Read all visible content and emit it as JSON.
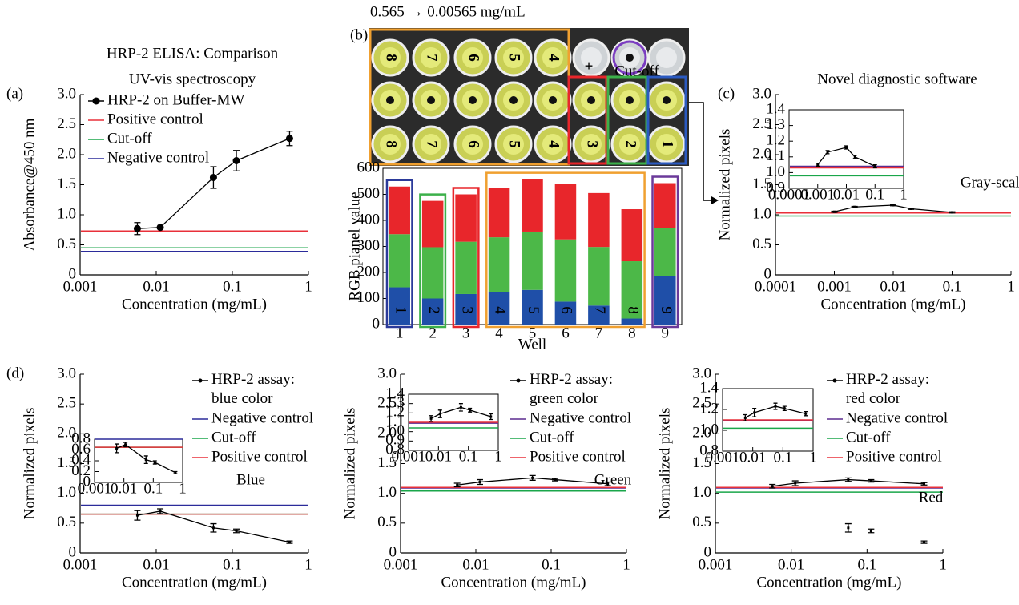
{
  "photo": {
    "caption": "0.565 → 0.00565 mg/mL",
    "top_labels": [
      "8",
      "7",
      "6",
      "5",
      "4"
    ],
    "bottom_labels": [
      "8",
      "7",
      "6",
      "5",
      "4",
      "3",
      "2",
      "1"
    ],
    "plus": "+",
    "cutoff": "Cut-off"
  },
  "chart_data": [
    {
      "type": "line",
      "panel_label": "(a)",
      "title": "HRP-2 ELISA: Comparison",
      "title_color": "#e8303a",
      "subtitle": "UV-vis spectroscopy",
      "xlabel": "Concentration (mg/mL)",
      "ylabel": "Absorbance@450 nm",
      "log_x": true,
      "xlim": [
        0.001,
        1
      ],
      "xticks": [
        0.001,
        0.01,
        0.1,
        1
      ],
      "ylim": [
        0,
        3
      ],
      "yticks": [
        0,
        0.5,
        {
          "value": 1,
          "label": "1.0"
        },
        1.5,
        {
          "value": 2,
          "label": "2.0"
        },
        2.5,
        {
          "value": 3,
          "label": "3.0"
        }
      ],
      "marker": "circle",
      "legend": "upper left",
      "series": [
        {
          "name": "HRP-2 on Buffer-MW",
          "color": "#000000",
          "x": [
            0.00565,
            0.0113,
            0.0565,
            0.113,
            0.565
          ],
          "values": [
            0.77,
            0.79,
            1.62,
            1.9,
            2.27
          ],
          "errors": [
            0.1,
            0.02,
            0.18,
            0.17,
            0.12
          ]
        }
      ],
      "hlines": [
        {
          "name": "Positive control",
          "color": "#e8303a",
          "value": 0.73
        },
        {
          "name": "Cut-off",
          "color": "#1aa64a",
          "value": 0.45
        },
        {
          "name": "Negative control",
          "color": "#2b2b9a",
          "value": 0.39
        }
      ]
    },
    {
      "type": "bar",
      "panel_label": "(b)",
      "stacked": true,
      "xlabel": "Well",
      "ylabel": "RGB pianel value",
      "categories": [
        "1",
        "2",
        "3",
        "4",
        "5",
        "6",
        "7",
        "8",
        "9"
      ],
      "ylim": [
        0,
        600
      ],
      "yticks": [
        0,
        100,
        200,
        300,
        400,
        500,
        600
      ],
      "series": [
        {
          "color": "#1f4fa8",
          "values": [
            143,
            100,
            117,
            125,
            133,
            88,
            73,
            23,
            187
          ]
        },
        {
          "color": "#4cb848",
          "values": [
            204,
            197,
            201,
            210,
            224,
            239,
            225,
            220,
            185
          ]
        },
        {
          "color": "#e8262b",
          "values": [
            183,
            178,
            182,
            190,
            201,
            213,
            207,
            200,
            171
          ]
        }
      ]
    },
    {
      "type": "line",
      "panel_label": "(c)",
      "title": "Novel diagnostic software",
      "title_color": "#e8303a",
      "annotation": "Gray-scale",
      "annotation_color": "#666666",
      "xlabel": "Concentration (mg/mL)",
      "ylabel": "Normalized pixels",
      "log_x": true,
      "xlim": [
        0.0001,
        1
      ],
      "xticks": [
        0.0001,
        0.001,
        0.01,
        0.1,
        1
      ],
      "ylim": [
        0,
        3
      ],
      "yticks": [
        0,
        0.5,
        {
          "value": 1,
          "label": "1.0"
        },
        1.5,
        {
          "value": 2,
          "label": "2.0"
        },
        2.5,
        {
          "value": 3,
          "label": "3.0"
        }
      ],
      "series": [
        {
          "color": "#000000",
          "x": [
            0.001,
            0.0022,
            0.01,
            0.02,
            0.1
          ],
          "values": [
            1.05,
            1.13,
            1.16,
            1.1,
            1.04
          ],
          "errors": [
            0.01,
            0.01,
            0.01,
            0.01,
            0.01
          ]
        }
      ],
      "hlines": [
        {
          "color": "#5b2c8f",
          "value": 1.04
        },
        {
          "color": "#e8303a",
          "value": 1.03
        },
        {
          "color": "#1aa64a",
          "value": 0.98
        }
      ],
      "inset": {
        "xlim": [
          0.0001,
          1
        ],
        "xticks": [
          0.0001,
          0.001,
          0.01,
          0.1,
          1
        ],
        "ylim": [
          0.9,
          1.4
        ],
        "yticks": [
          0.9,
          {
            "value": 1,
            "label": "1.0"
          },
          1.1,
          1.2,
          1.3,
          1.4
        ]
      }
    },
    {
      "type": "line",
      "panel_label": "(d)",
      "annotation": "Blue",
      "annotation_color": "#2b3aa0",
      "xlabel": "Concentration (mg/mL)",
      "ylabel": "Normalized pixels",
      "log_x": true,
      "xlim": [
        0.001,
        1
      ],
      "xticks": [
        0.001,
        0.01,
        0.1,
        1
      ],
      "ylim": [
        0,
        3
      ],
      "yticks": [
        0,
        0.5,
        {
          "value": 1,
          "label": "1.0"
        },
        1.5,
        {
          "value": 2,
          "label": "2.0"
        },
        2.5,
        {
          "value": 3,
          "label": "3.0"
        }
      ],
      "legend": "upper right",
      "series": [
        {
          "name": "HRP-2 assay: blue color",
          "color": "#000000",
          "x": [
            0.00565,
            0.0113,
            0.0565,
            0.113,
            0.565
          ],
          "values": [
            0.63,
            0.7,
            0.42,
            0.37,
            0.18
          ],
          "errors": [
            0.08,
            0.04,
            0.07,
            0.03,
            0.02
          ]
        }
      ],
      "hlines": [
        {
          "name": "Negative control",
          "color": "#2b2b9a",
          "value": 0.8
        },
        {
          "name": "Cut-off",
          "color": "#1aa64a",
          "value": 0.65
        },
        {
          "name": "Positive control",
          "color": "#e8303a",
          "value": 0.65
        }
      ],
      "inset": {
        "xlim": [
          0.001,
          1
        ],
        "xticks": [
          0.001,
          0.01,
          0.1,
          1
        ],
        "ylim": [
          0,
          0.8
        ],
        "yticks": [
          0,
          0.2,
          0.4,
          0.6,
          0.8
        ]
      }
    },
    {
      "type": "line",
      "annotation": "Green",
      "annotation_color": "#1aa64a",
      "xlabel": "Concentration (mg/mL)",
      "ylabel": "Normalized pixels",
      "log_x": true,
      "xlim": [
        0.001,
        1
      ],
      "xticks": [
        0.001,
        0.01,
        0.1,
        1
      ],
      "ylim": [
        0,
        3
      ],
      "yticks": [
        0,
        0.5,
        {
          "value": 1,
          "label": "1.0"
        },
        1.5,
        {
          "value": 2,
          "label": "2.0"
        },
        2.5,
        {
          "value": 3,
          "label": "3.0"
        }
      ],
      "legend": "upper right",
      "series": [
        {
          "name": "HRP-2 assay: green color",
          "color": "#000000",
          "x": [
            0.00565,
            0.0113,
            0.0565,
            0.113,
            0.565
          ],
          "values": [
            1.14,
            1.19,
            1.26,
            1.23,
            1.16
          ],
          "errors": [
            0.03,
            0.04,
            0.04,
            0.02,
            0.03
          ]
        }
      ],
      "hlines": [
        {
          "name": "Negative control",
          "color": "#5b2c8f",
          "value": 1.09
        },
        {
          "name": "Cut-off",
          "color": "#1aa64a",
          "value": 1.04
        },
        {
          "name": "Positive control",
          "color": "#e8303a",
          "value": 1.1
        }
      ],
      "inset": {
        "xlim": [
          0.001,
          1
        ],
        "xticks": [
          0.001,
          0.01,
          0.1,
          1
        ],
        "ylim": [
          0.8,
          1.4
        ],
        "yticks": [
          0.8,
          0.9,
          {
            "value": 1,
            "label": "1.0"
          },
          1.1,
          1.2,
          1.3,
          1.4
        ]
      }
    },
    {
      "type": "line",
      "annotation": "Red",
      "annotation_color": "#e8303a",
      "xlabel": "Concentration (mg/mL)",
      "ylabel": "Normalized pixels",
      "log_x": true,
      "xlim": [
        0.001,
        1
      ],
      "xticks": [
        0.001,
        0.01,
        0.1,
        1
      ],
      "ylim": [
        0,
        3
      ],
      "yticks": [
        0,
        0.5,
        {
          "value": 1,
          "label": "1.0"
        },
        1.5,
        {
          "value": 2,
          "label": "2.0"
        },
        2.5,
        {
          "value": 3,
          "label": "3.0"
        }
      ],
      "legend": "upper right",
      "series": [
        {
          "name": "HRP-2 assay: red color",
          "color": "#000000",
          "x": [
            0.00565,
            0.0113,
            0.0565,
            0.113,
            0.565
          ],
          "values": [
            1.12,
            1.17,
            1.23,
            1.21,
            1.16
          ],
          "errors": [
            0.03,
            0.04,
            0.03,
            0.02,
            0.02
          ]
        },
        {
          "color": "#000000",
          "linestyle": "none",
          "x": [
            0.0565,
            0.113,
            0.565
          ],
          "values": [
            0.42,
            0.37,
            0.18
          ],
          "errors": [
            0.07,
            0.03,
            0.02
          ]
        }
      ],
      "hlines": [
        {
          "name": "Negative control",
          "color": "#5b2c8f",
          "value": 1.09
        },
        {
          "name": "Cut-off",
          "color": "#1aa64a",
          "value": 1.02
        },
        {
          "name": "Positive control",
          "color": "#e8303a",
          "value": 1.1
        }
      ],
      "inset": {
        "xlim": [
          0.001,
          1
        ],
        "xticks": [
          0.001,
          0.01,
          0.1,
          1
        ],
        "ylim": [
          0.8,
          1.4
        ],
        "yticks": [
          0.8,
          {
            "value": 1,
            "label": "1.0"
          },
          1.2,
          1.4
        ]
      }
    }
  ]
}
